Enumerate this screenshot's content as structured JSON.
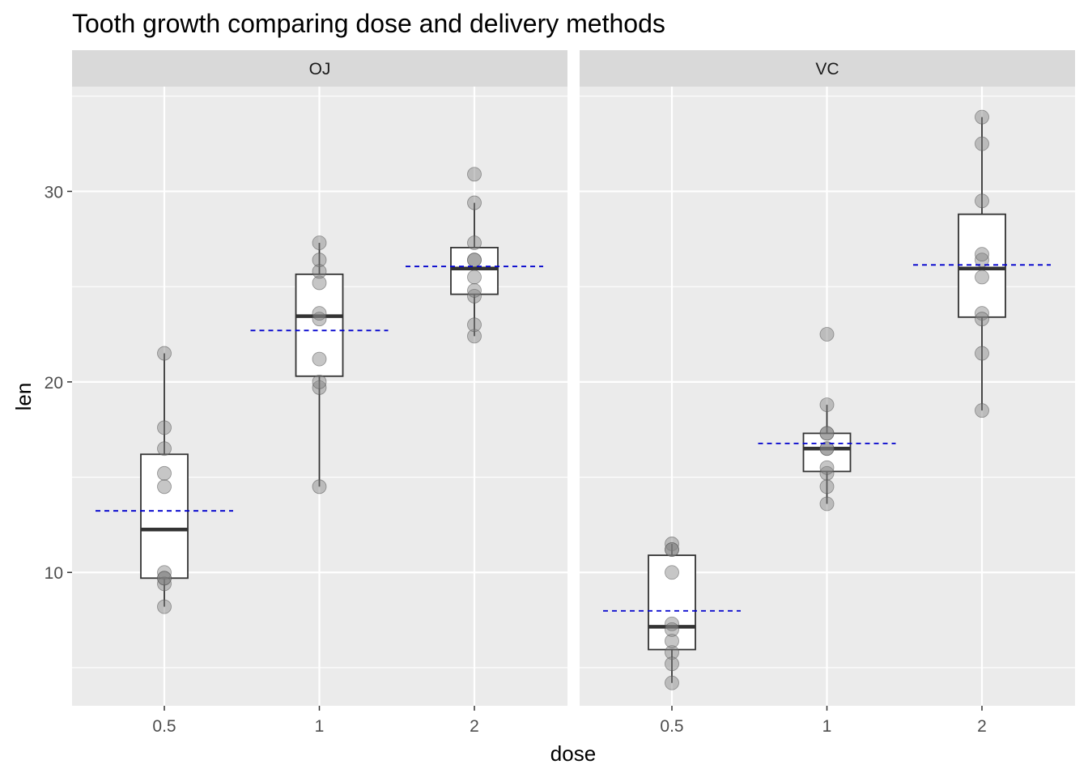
{
  "chart_data": {
    "type": "box",
    "title": "Tooth growth comparing dose and delivery methods",
    "xlabel": "dose",
    "ylabel": "len",
    "ylim": [
      3,
      35.5
    ],
    "yticks": [
      10,
      20,
      30
    ],
    "categories": [
      "0.5",
      "1",
      "2"
    ],
    "colors": {
      "panel_bg": "#EBEBEB",
      "strip_bg": "#D9D9D9",
      "grid": "#FFFFFF",
      "box_fill": "#FFFFFF",
      "box_line": "#333333",
      "point": "#808080",
      "mean_line": "#0000CD"
    },
    "facets": [
      {
        "name": "OJ",
        "groups": [
          {
            "dose": "0.5",
            "q1": 9.7,
            "median": 12.25,
            "q3": 16.2,
            "whisker_low": 8.2,
            "whisker_high": 21.5,
            "mean": 13.23,
            "points": [
              15.2,
              21.5,
              17.6,
              9.7,
              14.5,
              10.0,
              8.2,
              9.4,
              16.5,
              9.7
            ]
          },
          {
            "dose": "1",
            "q1": 20.3,
            "median": 23.45,
            "q3": 25.65,
            "whisker_low": 14.5,
            "whisker_high": 27.3,
            "mean": 22.7,
            "points": [
              19.7,
              23.3,
              23.6,
              26.4,
              20.0,
              25.2,
              25.8,
              21.2,
              14.5,
              27.3
            ]
          },
          {
            "dose": "2",
            "q1": 24.6,
            "median": 25.95,
            "q3": 27.05,
            "whisker_low": 22.4,
            "whisker_high": 29.4,
            "mean": 26.06,
            "points": [
              25.5,
              26.4,
              22.4,
              24.5,
              24.8,
              30.9,
              26.4,
              27.3,
              29.4,
              23.0
            ]
          }
        ]
      },
      {
        "name": "VC",
        "groups": [
          {
            "dose": "0.5",
            "q1": 5.95,
            "median": 7.15,
            "q3": 10.9,
            "whisker_low": 4.2,
            "whisker_high": 11.5,
            "mean": 7.98,
            "points": [
              4.2,
              11.5,
              7.3,
              5.8,
              6.4,
              10.0,
              11.2,
              11.2,
              5.2,
              7.0
            ]
          },
          {
            "dose": "1",
            "q1": 15.3,
            "median": 16.5,
            "q3": 17.3,
            "whisker_low": 13.6,
            "whisker_high": 18.8,
            "mean": 16.77,
            "points": [
              16.5,
              16.5,
              15.2,
              17.3,
              22.5,
              17.3,
              13.6,
              14.5,
              18.8,
              15.5
            ]
          },
          {
            "dose": "2",
            "q1": 23.4,
            "median": 25.95,
            "q3": 28.8,
            "whisker_low": 18.5,
            "whisker_high": 33.9,
            "mean": 26.14,
            "points": [
              23.6,
              18.5,
              33.9,
              25.5,
              26.4,
              32.5,
              26.7,
              21.5,
              23.3,
              29.5
            ]
          }
        ]
      }
    ]
  }
}
